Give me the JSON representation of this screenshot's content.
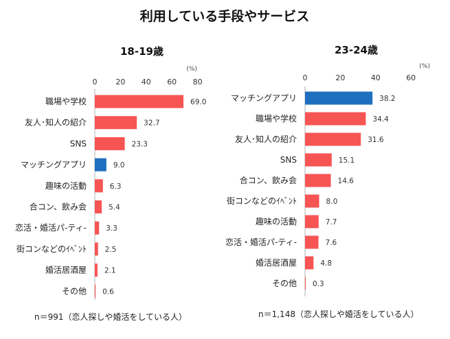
{
  "title": "利用している手段やサービス",
  "colors": {
    "highlight": "#1f6fbf",
    "bar": "#f75454",
    "axis": "#b0b0b0"
  },
  "chart_data": [
    {
      "type": "bar",
      "orientation": "horizontal",
      "title": "18-19歳",
      "unit": "(%)",
      "ticks": [
        "0",
        "20",
        "40",
        "60",
        "80"
      ],
      "xlim": [
        0,
        80
      ],
      "categories": [
        "職場や学校",
        "友人･知人の紹介",
        "SNS",
        "マッチングアプリ",
        "趣味の活動",
        "合コン、飲み会",
        "恋活・婚活パ-ティ-",
        "街コンなどのｲﾍﾞﾝﾄ",
        "婚活居酒屋",
        "その他"
      ],
      "values": [
        69.0,
        32.7,
        23.3,
        9.0,
        6.3,
        5.4,
        3.3,
        2.5,
        2.1,
        0.6
      ],
      "labels": [
        "69.0",
        "32.7",
        "23.3",
        "9.0",
        "6.3",
        "5.4",
        "3.3",
        "2.5",
        "2.1",
        "0.6"
      ],
      "highlight": "マッチングアプリ",
      "note": "n＝991（恋人探しや婚活をしている人）"
    },
    {
      "type": "bar",
      "orientation": "horizontal",
      "title": "23-24歳",
      "unit": "(%)",
      "ticks": [
        "0",
        "20",
        "40",
        "60"
      ],
      "xlim": [
        0,
        60
      ],
      "categories": [
        "マッチングアプリ",
        "職場や学校",
        "友人･知人の紹介",
        "SNS",
        "合コン、飲み会",
        "街コンなどのｲﾍﾞﾝﾄ",
        "趣味の活動",
        "恋活・婚活パ-ティ-",
        "婚活居酒屋",
        "その他"
      ],
      "values": [
        38.2,
        34.4,
        31.6,
        15.1,
        14.6,
        8.0,
        7.7,
        7.6,
        4.8,
        0.3
      ],
      "labels": [
        "38.2",
        "34.4",
        "31.6",
        "15.1",
        "14.6",
        "8.0",
        "7.7",
        "7.6",
        "4.8",
        "0.3"
      ],
      "highlight": "マッチングアプリ",
      "note": "n＝1,148（恋人探しや婚活をしている人）"
    }
  ]
}
